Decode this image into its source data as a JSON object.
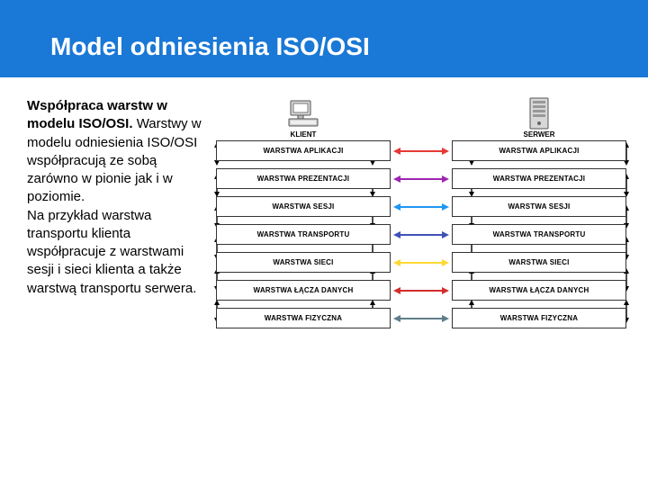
{
  "header": {
    "title": "Model odniesienia ISO/OSI"
  },
  "text": {
    "lead": "Współpraca warstw w modelu ISO/OSI.",
    "body1": "Warstwy w modelu odniesienia ISO/OSI współpracują ze sobą zarówno w pionie jak i w poziomie.",
    "body2": "Na przykład warstwa transportu klienta współpracuje z warstwami sesji i sieci klienta a także warstwą transportu serwera."
  },
  "diagram": {
    "left_label": "KLIENT",
    "right_label": "SERWER",
    "layer_bg": "#ffffff",
    "layer_border": "#333333",
    "layer_font_size": 8,
    "varrow_color": "#000000",
    "rows": [
      {
        "label": "WARSTWA APLIKACJI",
        "arrow_color": "#e53935"
      },
      {
        "label": "WARSTWA PREZENTACJI",
        "arrow_color": "#9c27b0"
      },
      {
        "label": "WARSTWA SESJI",
        "arrow_color": "#2196f3"
      },
      {
        "label": "WARSTWA TRANSPORTU",
        "arrow_color": "#3f51b5"
      },
      {
        "label": "WARSTWA SIECI",
        "arrow_color": "#fdd835"
      },
      {
        "label": "WARSTWA ŁĄCZA DANYCH",
        "arrow_color": "#d32f2f"
      },
      {
        "label": "WARSTWA FIZYCZNA",
        "arrow_color": "#607d8b"
      }
    ]
  }
}
